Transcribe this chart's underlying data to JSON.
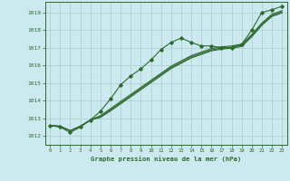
{
  "bg_color": "#cce9f0",
  "grid_color": "#aacccc",
  "line_color": "#2d6a2d",
  "marker_color": "#2d6a2d",
  "title": "Graphe pression niveau de la mer (hPa)",
  "ylim": [
    1011.5,
    1019.6
  ],
  "xlim": [
    -0.5,
    23.5
  ],
  "yticks": [
    1012,
    1013,
    1014,
    1015,
    1016,
    1017,
    1018,
    1019
  ],
  "xticks": [
    0,
    1,
    2,
    3,
    4,
    5,
    6,
    7,
    8,
    9,
    10,
    11,
    12,
    13,
    14,
    15,
    16,
    17,
    18,
    19,
    20,
    21,
    22,
    23
  ],
  "series_main": [
    1012.6,
    1012.5,
    1012.2,
    1012.5,
    1012.9,
    1013.4,
    1014.1,
    1014.9,
    1015.4,
    1015.8,
    1016.3,
    1016.9,
    1017.3,
    1017.55,
    1017.3,
    1017.1,
    1017.1,
    1017.0,
    1017.0,
    1017.2,
    1018.0,
    1019.0,
    1019.15,
    1019.35
  ],
  "series_t1": [
    1012.6,
    1012.55,
    1012.3,
    1012.55,
    1012.9,
    1013.15,
    1013.55,
    1013.95,
    1014.35,
    1014.75,
    1015.15,
    1015.55,
    1015.95,
    1016.25,
    1016.55,
    1016.75,
    1016.95,
    1017.05,
    1017.1,
    1017.2,
    1017.75,
    1018.4,
    1018.9,
    1019.1
  ],
  "series_t2": [
    1012.6,
    1012.55,
    1012.3,
    1012.55,
    1012.9,
    1013.1,
    1013.48,
    1013.88,
    1014.28,
    1014.68,
    1015.08,
    1015.48,
    1015.88,
    1016.18,
    1016.48,
    1016.68,
    1016.88,
    1016.98,
    1017.03,
    1017.13,
    1017.68,
    1018.33,
    1018.83,
    1019.03
  ],
  "series_t3": [
    1012.6,
    1012.55,
    1012.3,
    1012.55,
    1012.9,
    1013.05,
    1013.42,
    1013.82,
    1014.22,
    1014.62,
    1015.02,
    1015.42,
    1015.82,
    1016.12,
    1016.42,
    1016.62,
    1016.82,
    1016.92,
    1016.97,
    1017.07,
    1017.62,
    1018.27,
    1018.77,
    1018.97
  ]
}
